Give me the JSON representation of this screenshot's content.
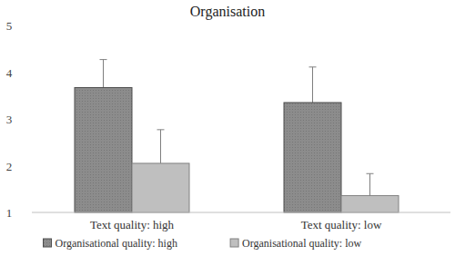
{
  "chart_data": {
    "type": "bar",
    "title": "Organisation",
    "categories": [
      "Text quality: high",
      "Text quality: low"
    ],
    "series": [
      {
        "name": "Organisational quality: high",
        "color": "#8c8c8c",
        "values": [
          3.67,
          3.35
        ],
        "error": [
          0.6,
          0.76
        ]
      },
      {
        "name": "Organisational quality: low",
        "color": "#bfbfbf",
        "values": [
          2.05,
          1.36
        ],
        "error": [
          0.72,
          0.47
        ]
      }
    ],
    "ylim": [
      1,
      5
    ],
    "yticks": [
      1,
      2,
      3,
      4,
      5
    ],
    "grid": false,
    "legend": "bottom"
  }
}
